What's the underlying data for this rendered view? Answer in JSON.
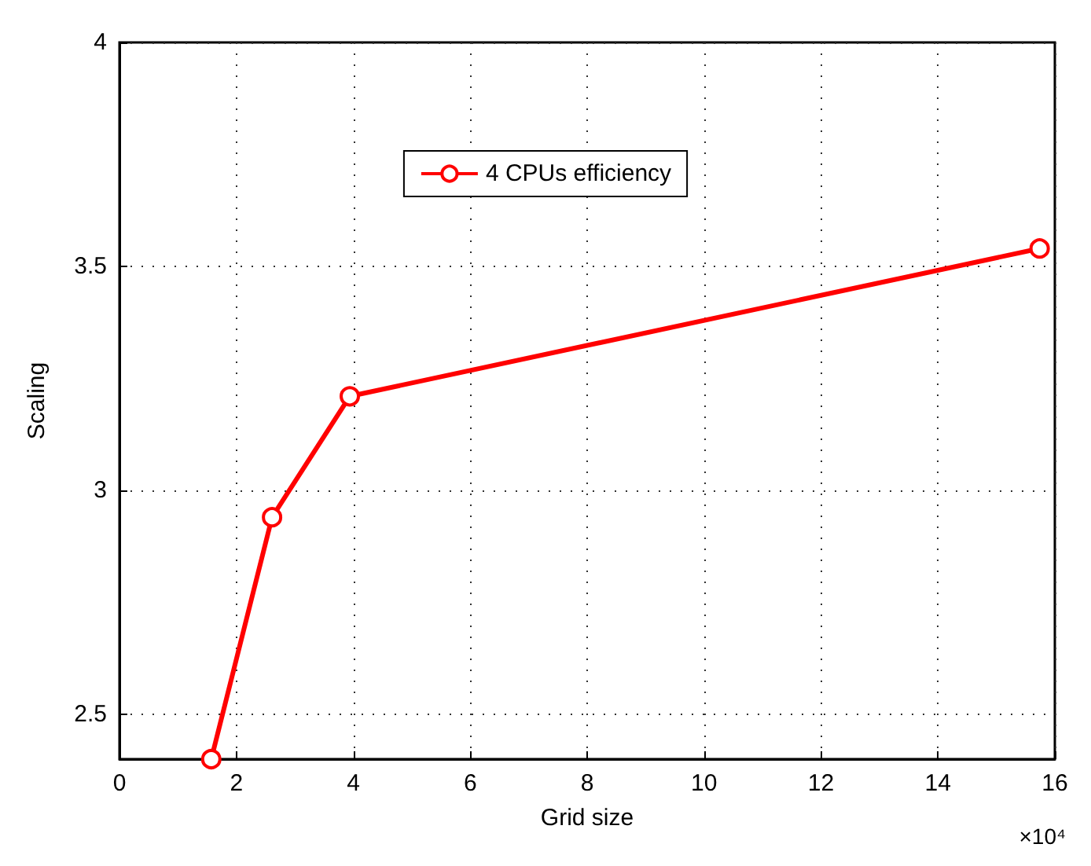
{
  "chart_data": {
    "type": "line",
    "xlabel": "Grid size",
    "ylabel": "Scaling",
    "x": [
      1.57,
      2.61,
      3.94,
      15.74
    ],
    "series": [
      {
        "name": "4 CPUs efficiency",
        "color": "#ff0000",
        "values": [
          2.4,
          2.94,
          3.21,
          3.54
        ]
      }
    ],
    "xlim": [
      0,
      16
    ],
    "xticks": [
      0,
      2,
      4,
      6,
      8,
      10,
      12,
      14,
      16
    ],
    "ylim": [
      2.4,
      4
    ],
    "yticks": [
      2.5,
      3,
      3.5,
      4
    ],
    "annotations": [
      "×10⁴"
    ],
    "grid": true,
    "legend": "top",
    "marker": "circle",
    "line_style": "solid"
  }
}
